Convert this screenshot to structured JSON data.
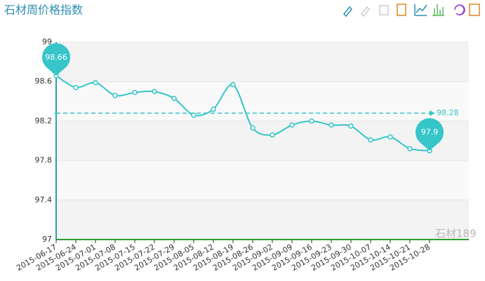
{
  "chart_data": {
    "type": "line",
    "title": "石材周价格指数",
    "categories": [
      "2015-06-17",
      "2015-06-24",
      "2015-07-01",
      "2015-07-08",
      "2015-07-15",
      "2015-07-22",
      "2015-07-29",
      "2015-08-05",
      "2015-08-12",
      "2015-08-19",
      "2015-08-26",
      "2015-09-02",
      "2015-09-09",
      "2015-09-16",
      "2015-09-23",
      "2015-09-30",
      "2015-10-07",
      "2015-10-14",
      "2015-10-21",
      "2015-10-28"
    ],
    "values": [
      98.66,
      98.54,
      98.59,
      98.46,
      98.49,
      98.5,
      98.43,
      98.26,
      98.32,
      98.57,
      98.13,
      98.06,
      98.16,
      98.2,
      98.16,
      98.15,
      98.01,
      98.04,
      97.92,
      97.9
    ],
    "color": "#36c5c9",
    "average": 98.28,
    "ylim": [
      97,
      99
    ],
    "yticks": [
      97,
      97.4,
      97.8,
      98.2,
      98.6,
      99
    ],
    "grid": true,
    "watermark": "石材189"
  }
}
